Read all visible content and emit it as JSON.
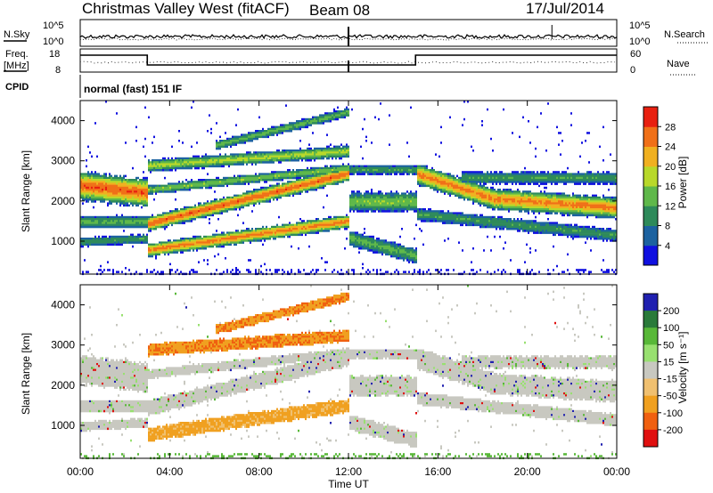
{
  "header": {
    "station": "Christmas Valley West (fitACF)",
    "beam": "Beam 08",
    "date": "17/Jul/2014"
  },
  "noise_panel": {
    "left_label": "N.Sky",
    "right_label": "N.Search",
    "left_ticks": [
      "10^5",
      "10^0"
    ],
    "right_ticks": [
      "10^5",
      "10^0"
    ]
  },
  "freq_panel": {
    "left_label_1": "Freq.",
    "left_label_2": "[MHz]",
    "left_ticks": [
      "18",
      "8"
    ],
    "right_ticks": [
      "60",
      "0"
    ],
    "right_label": "Nave"
  },
  "cpid_panel": {
    "label": "CPID",
    "mode": "normal (fast) 151 IF"
  },
  "chart_data": [
    {
      "type": "heatmap",
      "panel": "power",
      "ylabel": "Slant Range [km]",
      "xlabel": "",
      "x_range_hours": [
        0,
        24
      ],
      "ylim": [
        180,
        4500
      ],
      "y_ticks": [
        "1000",
        "2000",
        "3000",
        "4000"
      ],
      "colorbar": {
        "label": "Power [dB]",
        "ticks": [
          "4",
          "8",
          "12",
          "16",
          "20",
          "24",
          "28"
        ],
        "colors": [
          "#1010e0",
          "#1c62a0",
          "#2e8a5a",
          "#5fb84a",
          "#b8d82a",
          "#f0b020",
          "#f07018",
          "#e82010"
        ]
      }
    },
    {
      "type": "heatmap",
      "panel": "velocity",
      "ylabel": "Slant Range [km]",
      "xlabel": "Time UT",
      "x_range_hours": [
        0,
        24
      ],
      "ylim": [
        180,
        4500
      ],
      "y_ticks": [
        "1000",
        "2000",
        "3000",
        "4000"
      ],
      "x_ticks": [
        "00:00",
        "04:00",
        "08:00",
        "12:00",
        "16:00",
        "20:00",
        "00:00"
      ],
      "colorbar": {
        "label": "Velocity [m s⁻¹]",
        "ticks": [
          "200",
          "100",
          "50",
          "15",
          "-15",
          "-50",
          "-100",
          "-200"
        ],
        "colors": [
          "#2020b0",
          "#2a7a3a",
          "#58b838",
          "#98e070",
          "#c8c8c0",
          "#f0c070",
          "#f0a020",
          "#f06010",
          "#e01010"
        ]
      }
    }
  ]
}
